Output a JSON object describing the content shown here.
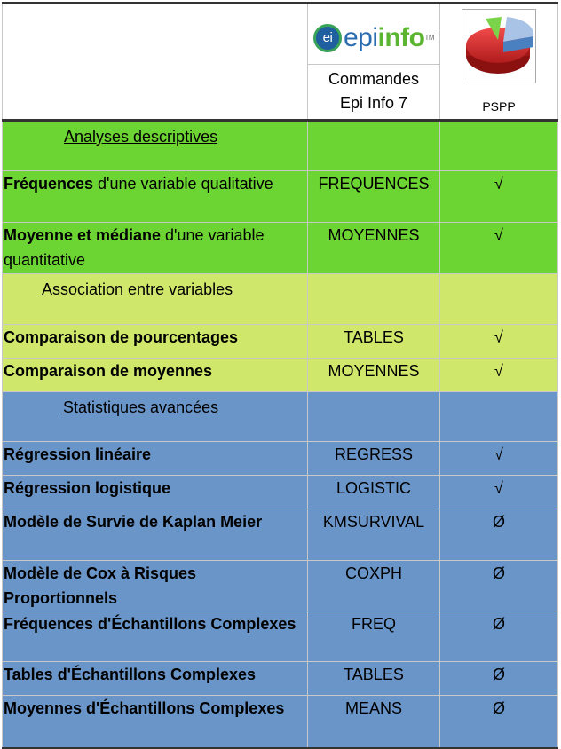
{
  "header": {
    "epiinfo_logo": {
      "ei": "ei",
      "epi": "epi",
      "info": "info",
      "tm": "TM"
    },
    "command_col_line1": "Commandes",
    "command_col_line2": "Epi Info 7",
    "pspp_label": "PSPP",
    "pspp_icon": "pie-chart-icon"
  },
  "colors": {
    "descriptive": "#6cd433",
    "association": "#cfe86c",
    "advanced": "#6a95c8"
  },
  "sections": [
    {
      "title": "Analyses descriptives",
      "color": "green",
      "rows": [
        {
          "bold": "Fréquences",
          "rest": " d'une variable qualitative",
          "command": "FREQUENCES",
          "pspp": "√"
        },
        {
          "bold": "Moyenne et médiane",
          "rest": " d'une variable quantitative",
          "command": "MOYENNES",
          "pspp": "√"
        }
      ]
    },
    {
      "title": "Association entre variables",
      "color": "lime",
      "rows": [
        {
          "bold": "Comparaison de pourcentages",
          "rest": "",
          "command": "TABLES",
          "pspp": "√"
        },
        {
          "bold": "Comparaison de moyennes",
          "rest": "",
          "command": "MOYENNES",
          "pspp": "√"
        }
      ]
    },
    {
      "title": "Statistiques avancées",
      "color": "blue",
      "rows": [
        {
          "bold": "Régression linéaire",
          "rest": "",
          "command": "REGRESS",
          "pspp": "√"
        },
        {
          "bold": "Régression logistique",
          "rest": "",
          "command": "LOGISTIC",
          "pspp": "√"
        },
        {
          "bold": "Modèle de Survie de Kaplan Meier",
          "rest": "",
          "command": "KMSURVIVAL",
          "pspp": "Ø"
        },
        {
          "bold": "Modèle de Cox à Risques Proportionnels",
          "rest": "",
          "command": "COXPH",
          "pspp": "Ø"
        },
        {
          "bold": "Fréquences d'Échantillons Complexes",
          "rest": "",
          "command": "FREQ",
          "pspp": "Ø"
        },
        {
          "bold": "Tables d'Échantillons Complexes",
          "rest": "",
          "command": "TABLES",
          "pspp": "Ø"
        },
        {
          "bold": "Moyennes d'Échantillons Complexes",
          "rest": "",
          "command": "MEANS",
          "pspp": "Ø"
        }
      ]
    }
  ]
}
